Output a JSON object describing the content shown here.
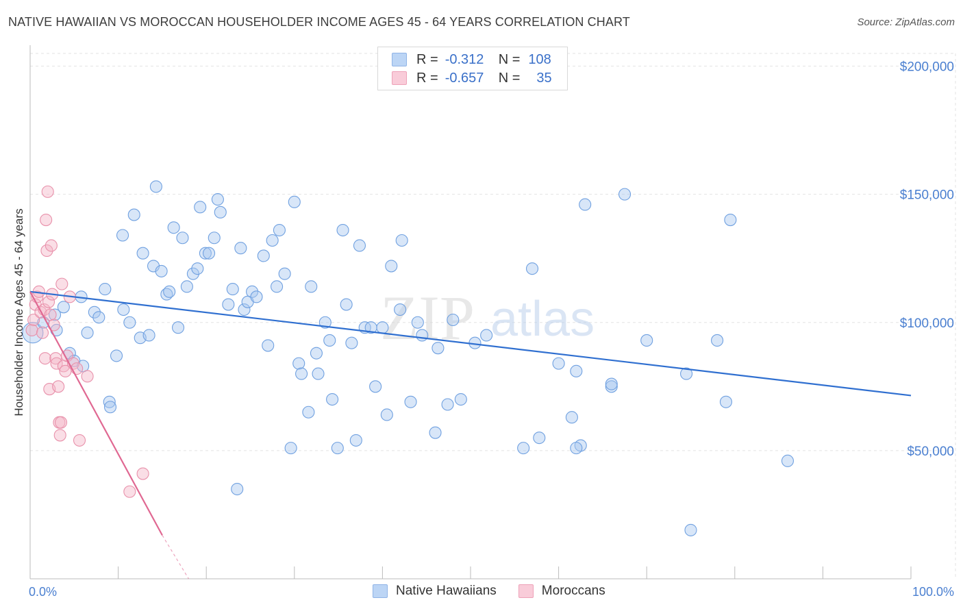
{
  "title": "NATIVE HAWAIIAN VS MOROCCAN HOUSEHOLDER INCOME AGES 45 - 64 YEARS CORRELATION CHART",
  "source": "Source: ZipAtlas.com",
  "watermark": {
    "zip": "ZIP",
    "atlas": "atlas"
  },
  "legend": {
    "r_label": "R =",
    "n_label": "N =",
    "rows": [
      {
        "r": "-0.312",
        "n": "108",
        "color": "#a8c8f0"
      },
      {
        "r": "-0.657",
        "n": "35",
        "color": "#f5b5c8"
      }
    ]
  },
  "bottom_legend": [
    {
      "label": "Native Hawaiians",
      "color": "#a8c8f0"
    },
    {
      "label": "Moroccans",
      "color": "#f5b5c8"
    }
  ],
  "chart_data": {
    "type": "scatter",
    "title": "NATIVE HAWAIIAN VS MOROCCAN HOUSEHOLDER INCOME AGES 45 - 64 YEARS CORRELATION CHART",
    "xlabel": "",
    "ylabel": "Householder Income Ages 45 - 64 years",
    "xlim": [
      0,
      100
    ],
    "ylim": [
      0,
      200000
    ],
    "x_tick_labels": [
      "0.0%",
      "100.0%"
    ],
    "y_ticks": [
      50000,
      100000,
      150000,
      200000
    ],
    "y_tick_labels": [
      "$50,000",
      "$100,000",
      "$150,000",
      "$200,000"
    ],
    "series": [
      {
        "name": "Native Hawaiians",
        "color": "#6fa0e0",
        "fill": "#a8c8f0",
        "trend": {
          "x": [
            0,
            100
          ],
          "y": [
            112000,
            71500
          ],
          "color": "#2f6fd0"
        },
        "points": [
          [
            0.3,
            96000
          ],
          [
            1.5,
            100000
          ],
          [
            3.0,
            97000
          ],
          [
            3.8,
            106000
          ],
          [
            2.8,
            103000
          ],
          [
            4.5,
            88000
          ],
          [
            5.0,
            85000
          ],
          [
            6.0,
            83000
          ],
          [
            5.8,
            110000
          ],
          [
            6.5,
            96000
          ],
          [
            7.3,
            104000
          ],
          [
            7.8,
            102000
          ],
          [
            8.5,
            113000
          ],
          [
            9.0,
            69000
          ],
          [
            9.1,
            67000
          ],
          [
            9.8,
            87000
          ],
          [
            10.5,
            134000
          ],
          [
            10.6,
            105000
          ],
          [
            11.3,
            100000
          ],
          [
            11.8,
            142000
          ],
          [
            12.5,
            94000
          ],
          [
            12.8,
            127000
          ],
          [
            13.5,
            95000
          ],
          [
            14.0,
            122000
          ],
          [
            14.3,
            153000
          ],
          [
            14.9,
            120000
          ],
          [
            15.5,
            111000
          ],
          [
            15.8,
            112000
          ],
          [
            16.3,
            137000
          ],
          [
            16.8,
            98000
          ],
          [
            17.3,
            133000
          ],
          [
            17.8,
            114000
          ],
          [
            18.5,
            119000
          ],
          [
            19.0,
            121000
          ],
          [
            19.3,
            145000
          ],
          [
            19.9,
            127000
          ],
          [
            20.3,
            127000
          ],
          [
            20.9,
            133000
          ],
          [
            21.3,
            148000
          ],
          [
            21.6,
            143000
          ],
          [
            22.5,
            107000
          ],
          [
            23.0,
            113000
          ],
          [
            23.5,
            35000
          ],
          [
            23.9,
            129000
          ],
          [
            24.3,
            105000
          ],
          [
            24.7,
            108000
          ],
          [
            25.2,
            112000
          ],
          [
            25.7,
            110000
          ],
          [
            26.5,
            126000
          ],
          [
            27.0,
            91000
          ],
          [
            27.5,
            132000
          ],
          [
            28.0,
            114000
          ],
          [
            28.3,
            136000
          ],
          [
            28.9,
            119000
          ],
          [
            29.6,
            51000
          ],
          [
            30.0,
            147000
          ],
          [
            30.5,
            84000
          ],
          [
            30.8,
            80000
          ],
          [
            31.6,
            65000
          ],
          [
            31.9,
            114000
          ],
          [
            32.5,
            88000
          ],
          [
            32.7,
            80000
          ],
          [
            33.5,
            100000
          ],
          [
            34.0,
            93000
          ],
          [
            34.3,
            70000
          ],
          [
            34.9,
            51000
          ],
          [
            35.5,
            136000
          ],
          [
            35.9,
            107000
          ],
          [
            36.5,
            92000
          ],
          [
            37.0,
            54000
          ],
          [
            37.4,
            130000
          ],
          [
            38.0,
            98000
          ],
          [
            38.7,
            98000
          ],
          [
            39.2,
            75000
          ],
          [
            40.5,
            64000
          ],
          [
            41.0,
            122000
          ],
          [
            42.0,
            105000
          ],
          [
            42.2,
            132000
          ],
          [
            43.2,
            69000
          ],
          [
            44.0,
            100000
          ],
          [
            44.5,
            95000
          ],
          [
            46.0,
            57000
          ],
          [
            46.3,
            90000
          ],
          [
            47.4,
            68000
          ],
          [
            48.9,
            70000
          ],
          [
            50.5,
            92000
          ],
          [
            51.8,
            95000
          ],
          [
            56.0,
            51000
          ],
          [
            57.0,
            121000
          ],
          [
            57.8,
            55000
          ],
          [
            60.0,
            84000
          ],
          [
            61.5,
            63000
          ],
          [
            62.0,
            81000
          ],
          [
            62.5,
            52000
          ],
          [
            63.0,
            146000
          ],
          [
            66.0,
            75000
          ],
          [
            67.5,
            150000
          ],
          [
            70.0,
            93000
          ],
          [
            74.5,
            80000
          ],
          [
            75.0,
            19000
          ],
          [
            78.0,
            93000
          ],
          [
            79.0,
            69000
          ],
          [
            79.5,
            140000
          ],
          [
            86.0,
            46000
          ],
          [
            62.0,
            51000
          ],
          [
            48.0,
            101000
          ],
          [
            66.0,
            76000
          ],
          [
            40.0,
            98000
          ]
        ]
      },
      {
        "name": "Moroccans",
        "color": "#e890aa",
        "fill": "#f5b5c8",
        "trend": {
          "x": [
            0,
            15
          ],
          "y": [
            112000,
            17000
          ],
          "dash_to": [
            18,
            0
          ],
          "color": "#e06892"
        },
        "points": [
          [
            0.2,
            97000
          ],
          [
            0.4,
            101000
          ],
          [
            0.6,
            107000
          ],
          [
            0.8,
            110000
          ],
          [
            1.0,
            112000
          ],
          [
            1.2,
            104000
          ],
          [
            1.4,
            96000
          ],
          [
            1.6,
            105000
          ],
          [
            1.7,
            86000
          ],
          [
            1.8,
            140000
          ],
          [
            1.9,
            128000
          ],
          [
            2.0,
            151000
          ],
          [
            2.1,
            108000
          ],
          [
            2.2,
            74000
          ],
          [
            2.3,
            103000
          ],
          [
            2.4,
            130000
          ],
          [
            2.5,
            111000
          ],
          [
            2.7,
            99000
          ],
          [
            2.9,
            86000
          ],
          [
            3.0,
            84000
          ],
          [
            3.2,
            75000
          ],
          [
            3.3,
            61000
          ],
          [
            3.4,
            56000
          ],
          [
            3.5,
            61000
          ],
          [
            3.6,
            115000
          ],
          [
            3.8,
            83000
          ],
          [
            4.0,
            81000
          ],
          [
            4.2,
            87000
          ],
          [
            4.5,
            110000
          ],
          [
            4.9,
            84000
          ],
          [
            5.3,
            82000
          ],
          [
            5.6,
            54000
          ],
          [
            6.5,
            79000
          ],
          [
            11.3,
            34000
          ],
          [
            12.8,
            41000
          ]
        ]
      }
    ]
  }
}
